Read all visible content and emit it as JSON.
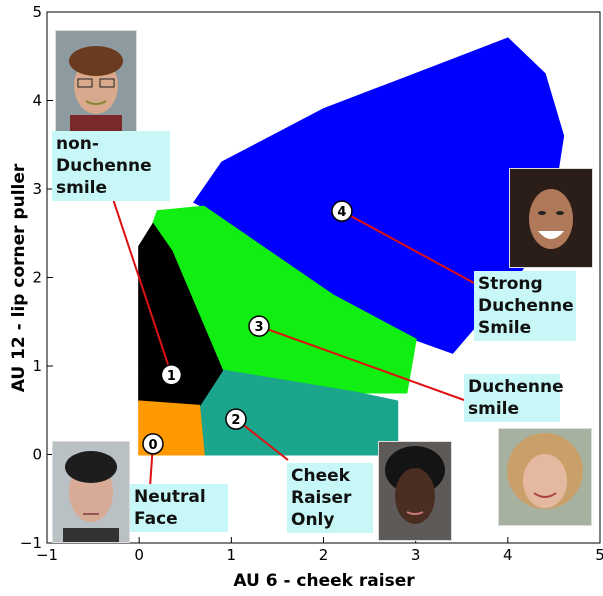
{
  "chart_data": {
    "type": "scatter",
    "xlabel": "AU 6 - cheek raiser",
    "ylabel": "AU 12 - lip corner puller",
    "xlim": [
      -1,
      5
    ],
    "ylim": [
      -1,
      5
    ],
    "xticks": [
      "−1",
      "0",
      "1",
      "2",
      "3",
      "4",
      "5"
    ],
    "yticks": [
      "−1",
      "0",
      "1",
      "2",
      "3",
      "4",
      "5"
    ],
    "grid": false,
    "clusters": [
      {
        "id": "0",
        "label": "Neutral Face",
        "color": "#ff9900",
        "polygon": [
          [
            0,
            0
          ],
          [
            0,
            0.6
          ],
          [
            0.65,
            0.55
          ],
          [
            0.7,
            0
          ]
        ],
        "center": [
          0.15,
          0.12
        ]
      },
      {
        "id": "1",
        "label": "non-Duchenne smile",
        "color": "#000000",
        "polygon": [
          [
            0,
            0.6
          ],
          [
            0,
            2.35
          ],
          [
            0.15,
            2.6
          ],
          [
            0.35,
            2.3
          ],
          [
            0.9,
            0.95
          ],
          [
            0.65,
            0.55
          ]
        ],
        "center": [
          0.35,
          0.9
        ]
      },
      {
        "id": "2",
        "label": "Cheek Raiser Only",
        "color": "#1aa58c",
        "polygon": [
          [
            0.7,
            0
          ],
          [
            0.65,
            0.55
          ],
          [
            0.9,
            0.95
          ],
          [
            2.35,
            0.7
          ],
          [
            2.8,
            0.6
          ],
          [
            2.8,
            0
          ],
          [
            1.8,
            0
          ]
        ],
        "center": [
          1.05,
          0.4
        ]
      },
      {
        "id": "3",
        "label": "Duchenne smile",
        "color": "#11ee11",
        "polygon": [
          [
            0.15,
            2.6
          ],
          [
            0.2,
            2.75
          ],
          [
            0.7,
            2.8
          ],
          [
            2.1,
            1.8
          ],
          [
            3.0,
            1.3
          ],
          [
            2.9,
            0.7
          ],
          [
            2.35,
            0.7
          ],
          [
            0.9,
            0.95
          ],
          [
            0.35,
            2.3
          ]
        ],
        "center": [
          1.3,
          1.45
        ]
      },
      {
        "id": "4",
        "label": "Strong Duchenne Smile",
        "color": "#0000ff",
        "polygon": [
          [
            0.6,
            2.85
          ],
          [
            0.9,
            3.3
          ],
          [
            2.0,
            3.9
          ],
          [
            3.5,
            4.5
          ],
          [
            4.0,
            4.7
          ],
          [
            4.4,
            4.3
          ],
          [
            4.6,
            3.6
          ],
          [
            4.45,
            2.6
          ],
          [
            4.1,
            2.0
          ],
          [
            3.4,
            1.15
          ],
          [
            3.0,
            1.3
          ],
          [
            2.1,
            1.8
          ],
          [
            0.7,
            2.8
          ]
        ],
        "center": [
          2.2,
          2.75
        ]
      }
    ]
  },
  "photo_colors": {
    "skin": "#c99a80",
    "hair_brown": "#6b3b1f",
    "hair_black": "#1a1a1a",
    "background": "#9aa6ad"
  }
}
